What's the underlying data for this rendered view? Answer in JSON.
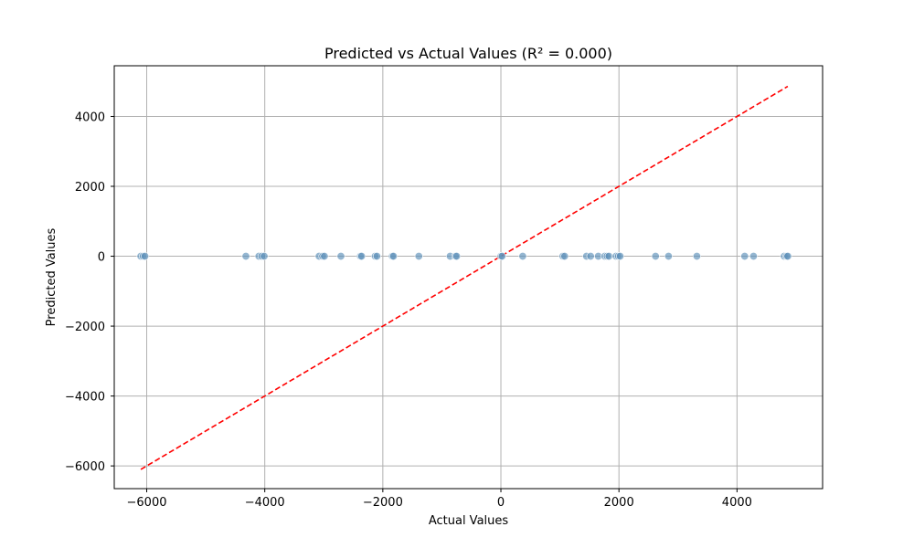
{
  "chart_data": {
    "type": "scatter",
    "title": "Predicted vs Actual Values (R² = 0.000)",
    "xlabel": "Actual Values",
    "ylabel": "Predicted Values",
    "xlim": [
      -6550,
      5450
    ],
    "ylim": [
      -6650,
      5450
    ],
    "xticks": [
      -6000,
      -4000,
      -2000,
      0,
      2000,
      4000
    ],
    "yticks": [
      -6000,
      -4000,
      -2000,
      0,
      2000,
      4000
    ],
    "xtick_labels": [
      "−6000",
      "−4000",
      "−2000",
      "0",
      "2000",
      "4000"
    ],
    "ytick_labels": [
      "−6000",
      "−4000",
      "−2000",
      "0",
      "2000",
      "4000"
    ],
    "grid": true,
    "colors": {
      "points": "#5b8fb9",
      "reference_line": "#ff0000",
      "grid": "#b0b0b0"
    },
    "series": [
      {
        "x": [
          -6100,
          -6060,
          -6030,
          -4320,
          -4100,
          -4050,
          -4010,
          -3080,
          -3020,
          -2990,
          -2710,
          -2380,
          -2360,
          -2130,
          -2100,
          -1840,
          -1820,
          -1390,
          -860,
          -770,
          -750,
          0,
          20,
          370,
          1050,
          1080,
          1450,
          1520,
          1650,
          1760,
          1800,
          1830,
          1950,
          1990,
          2020,
          2620,
          2840,
          3320,
          4130,
          4280,
          4800,
          4840,
          4860
        ],
        "y": [
          0,
          0,
          0,
          0,
          0,
          0,
          0,
          0,
          0,
          0,
          0,
          0,
          0,
          0,
          0,
          0,
          0,
          0,
          0,
          0,
          0,
          0,
          0,
          0,
          0,
          0,
          0,
          0,
          0,
          0,
          0,
          0,
          0,
          0,
          0,
          0,
          0,
          0,
          0,
          0,
          0,
          0,
          0
        ]
      },
      {
        "type": "line",
        "style": "dashed",
        "x": [
          -6100,
          4860
        ],
        "y": [
          -6100,
          4860
        ]
      }
    ]
  }
}
